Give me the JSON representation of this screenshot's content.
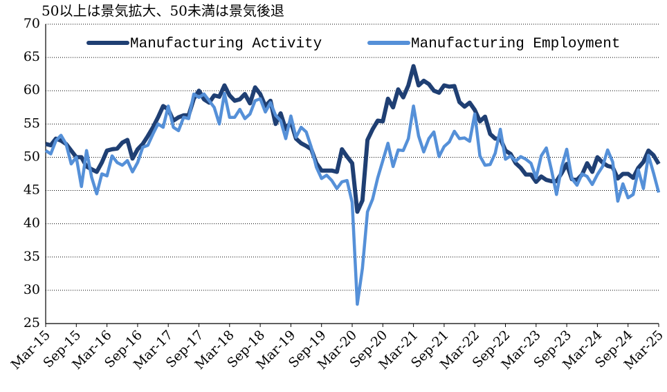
{
  "chart_data": {
    "type": "line",
    "title": "50以上は景気拡大、50未満は景気後退",
    "categories": [
      "Mar-15",
      null,
      null,
      null,
      null,
      null,
      "Sep-15",
      null,
      null,
      null,
      null,
      null,
      "Mar-16",
      null,
      null,
      null,
      null,
      null,
      "Sep-16",
      null,
      null,
      null,
      null,
      null,
      "Mar-17",
      null,
      null,
      null,
      null,
      null,
      "Sep-17",
      null,
      null,
      null,
      null,
      null,
      "Mar-18",
      null,
      null,
      null,
      null,
      null,
      "Sep-18",
      null,
      null,
      null,
      null,
      null,
      "Mar-19",
      null,
      null,
      null,
      null,
      null,
      "Sep-19",
      null,
      null,
      null,
      null,
      null,
      "Mar-20",
      null,
      null,
      null,
      null,
      null,
      "Sep-20",
      null,
      null,
      null,
      null,
      null,
      "Mar-21",
      null,
      null,
      null,
      null,
      null,
      "Sep-21",
      null,
      null,
      null,
      null,
      null,
      "Mar-22",
      null,
      null,
      null,
      null,
      null,
      "Sep-22",
      null,
      null,
      null,
      null,
      null,
      "Mar-23",
      null,
      null,
      null,
      null,
      null,
      "Sep-23",
      null,
      null,
      null,
      null,
      null,
      "Mar-24",
      null,
      null,
      null,
      null,
      null,
      "Sep-24",
      null,
      null,
      null,
      null,
      null,
      "Mar-25"
    ],
    "series": [
      {
        "name": "Manufacturing Activity",
        "color": "#1f3f73",
        "values": [
          52,
          51.8,
          52.8,
          52.5,
          52,
          51,
          50,
          50,
          48.6,
          48.2,
          47.8,
          49.2,
          51,
          51.2,
          51.3,
          52.2,
          52.6,
          49.8,
          51.2,
          52,
          53.2,
          54.5,
          56,
          57.7,
          57.2,
          55.5,
          56,
          56.3,
          56.3,
          58.8,
          60,
          58.7,
          58.2,
          59.3,
          59.1,
          60.8,
          59.3,
          58.5,
          58.7,
          59.5,
          58.1,
          60.5,
          59.5,
          57.7,
          58.5,
          55,
          56.6,
          54.2,
          55.3,
          52.8,
          52.1,
          51.7,
          51.2,
          49.1,
          48,
          48,
          48,
          47.8,
          51.2,
          50.1,
          49.1,
          41.8,
          43.5,
          52.6,
          54.2,
          55.5,
          55.4,
          58.8,
          57.5,
          60.2,
          59,
          60.8,
          63.7,
          60.8,
          61.5,
          61,
          60,
          59.7,
          60.8,
          60.6,
          60.7,
          58.3,
          57.6,
          58.2,
          57.1,
          55.4,
          56.1,
          53.5,
          52.8,
          52.8,
          51,
          50.5,
          49.1,
          48.4,
          47.4,
          47.4,
          46.3,
          47.1,
          46.6,
          46.4,
          46.4,
          47.6,
          49,
          46.7,
          46.6,
          47.4,
          49.1,
          47.8,
          50,
          49.2,
          48.7,
          48.5,
          46.8,
          47.5,
          47.5,
          46.9,
          48.4,
          49.3,
          51,
          50.3,
          49
        ]
      },
      {
        "name": "Manufacturing Employment",
        "color": "#5590d8",
        "values": [
          51,
          50.5,
          52.5,
          53.3,
          52,
          49,
          50,
          45.6,
          51,
          47,
          44.5,
          47.5,
          47.2,
          50.2,
          49.2,
          48.8,
          49.5,
          47.8,
          49.2,
          51.5,
          51.8,
          53.5,
          55,
          54.5,
          57.7,
          54.5,
          54,
          56,
          55.8,
          59.5,
          59,
          59.5,
          58.5,
          57.5,
          55,
          59.6,
          56,
          56,
          57.2,
          55.8,
          56.5,
          58.5,
          58.8,
          56.8,
          58.2,
          56.3,
          55.5,
          52.8,
          56.2,
          53,
          54.5,
          53.8,
          51.5,
          48.5,
          46.8,
          47.3,
          46.5,
          45.3,
          46.3,
          46.5,
          43.2,
          27.9,
          33.3,
          41.8,
          43.7,
          46.9,
          49.5,
          52.1,
          48.6,
          51.1,
          51,
          52.8,
          57.7,
          53.2,
          50.8,
          52.8,
          53.8,
          50.1,
          51.6,
          52.3,
          53.9,
          52.8,
          52.9,
          52.4,
          56.5,
          50.2,
          48.8,
          48.9,
          50.6,
          54.2,
          49.7,
          50.2,
          49.4,
          50.1,
          49.7,
          49.1,
          46.9,
          50.2,
          51.4,
          48.1,
          44.4,
          48.5,
          51.2,
          46.8,
          45.8,
          47.5,
          47.1,
          45.9,
          47.4,
          48.6,
          51.1,
          49.3,
          43.4,
          46,
          43.9,
          44.4,
          48.1,
          45.3,
          50.3,
          47.6,
          44.7
        ]
      }
    ],
    "ylim": [
      25,
      70
    ],
    "yticks": [
      25,
      30,
      35,
      40,
      45,
      50,
      55,
      60,
      65,
      70
    ],
    "grid": true,
    "legend": "top"
  }
}
